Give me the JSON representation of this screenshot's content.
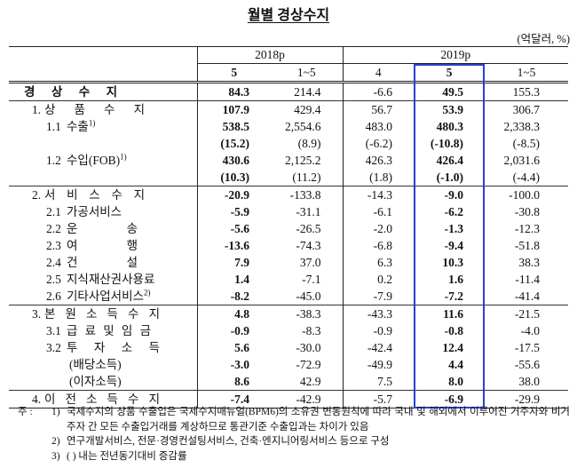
{
  "title": "월별 경상수지",
  "unit": "(억달러, %)",
  "header": {
    "years": [
      "2018p",
      "2019p"
    ],
    "months": [
      "5",
      "1~5",
      "4",
      "5",
      "1~5"
    ]
  },
  "table": {
    "rows": [
      {
        "text": "경 상 수 지",
        "values": [
          "84.3",
          "214.4",
          "-6.6",
          "49.5",
          "155.3"
        ]
      },
      {
        "num": "1.",
        "text": "상 품 수 지",
        "values": [
          "107.9",
          "429.4",
          "56.7",
          "53.9",
          "306.7"
        ]
      },
      {
        "num": "1.1",
        "text": "수출",
        "note": "1)",
        "values": [
          "538.5",
          "2,554.6",
          "483.0",
          "480.3",
          "2,338.3"
        ]
      },
      {
        "values": [
          "(15.2)",
          "(8.9)",
          "(-6.2)",
          "(-10.8)",
          "(-8.5)"
        ]
      },
      {
        "num": "1.2",
        "text": "수입(FOB)",
        "note": "1)",
        "values": [
          "430.6",
          "2,125.2",
          "426.3",
          "426.4",
          "2,031.6"
        ]
      },
      {
        "values": [
          "(10.3)",
          "(11.2)",
          "(1.8)",
          "(-1.0)",
          "(-4.4)"
        ]
      },
      {
        "num": "2.",
        "text": "서 비 스 수 지",
        "values": [
          "-20.9",
          "-133.8",
          "-14.3",
          "-9.0",
          "-100.0"
        ]
      },
      {
        "num": "2.1",
        "text": "가공서비스",
        "values": [
          "-5.9",
          "-31.1",
          "-6.1",
          "-6.2",
          "-30.8"
        ]
      },
      {
        "num": "2.2",
        "text": "운 송",
        "values": [
          "-5.6",
          "-26.5",
          "-2.0",
          "-1.3",
          "-12.3"
        ]
      },
      {
        "num": "2.3",
        "text": "여 행",
        "values": [
          "-13.6",
          "-74.3",
          "-6.8",
          "-9.4",
          "-51.8"
        ]
      },
      {
        "num": "2.4",
        "text": "건 설",
        "values": [
          "7.9",
          "37.0",
          "6.3",
          "10.3",
          "38.3"
        ]
      },
      {
        "num": "2.5",
        "text": "지식재산권사용료",
        "values": [
          "1.4",
          "-7.1",
          "0.2",
          "1.6",
          "-11.4"
        ]
      },
      {
        "num": "2.6",
        "text": "기타사업서비스",
        "note": "2)",
        "values": [
          "-8.2",
          "-45.0",
          "-7.9",
          "-7.2",
          "-41.4"
        ]
      },
      {
        "num": "3.",
        "text": "본 원 소 득 수 지",
        "values": [
          "4.8",
          "-38.3",
          "-43.3",
          "11.6",
          "-21.5"
        ]
      },
      {
        "num": "3.1",
        "text": "급 료 및 임 금",
        "values": [
          "-0.9",
          "-8.3",
          "-0.9",
          "-0.8",
          "-4.0"
        ]
      },
      {
        "num": "3.2",
        "text": "투 자 소 득",
        "values": [
          "5.6",
          "-30.0",
          "-42.4",
          "12.4",
          "-17.5"
        ]
      },
      {
        "text": "(배당소득)",
        "values": [
          "-3.0",
          "-72.9",
          "-49.9",
          "4.4",
          "-55.6"
        ]
      },
      {
        "text": "(이자소득)",
        "values": [
          "8.6",
          "42.9",
          "7.5",
          "8.0",
          "38.0"
        ]
      },
      {
        "num": "4.",
        "text": "이 전 소 득 수 지",
        "values": [
          "-7.4",
          "-42.9",
          "-5.7",
          "-6.9",
          "-29.9"
        ]
      }
    ]
  },
  "footnotes": {
    "prefix": "주 :",
    "items": [
      {
        "mark": "1)",
        "text": "국제수지의 상품 수출입은 국제수지매뉴얼(BPM6)의 소유권 변동원칙에 따라 국내 및 해외에서 이루어진 거주자와 비거주자 간 모든 수출입거래를 계상하므로 통관기준 수출입과는 차이가 있음"
      },
      {
        "mark": "2)",
        "text": "연구개발서비스, 전문·경영컨설팅서비스, 건축·엔지니어링서비스 등으로 구성"
      },
      {
        "mark": "3)",
        "text": "( ) 내는 전년동기대비 증감률"
      }
    ]
  },
  "colors": {
    "highlight_box": "#2b3fd1"
  }
}
